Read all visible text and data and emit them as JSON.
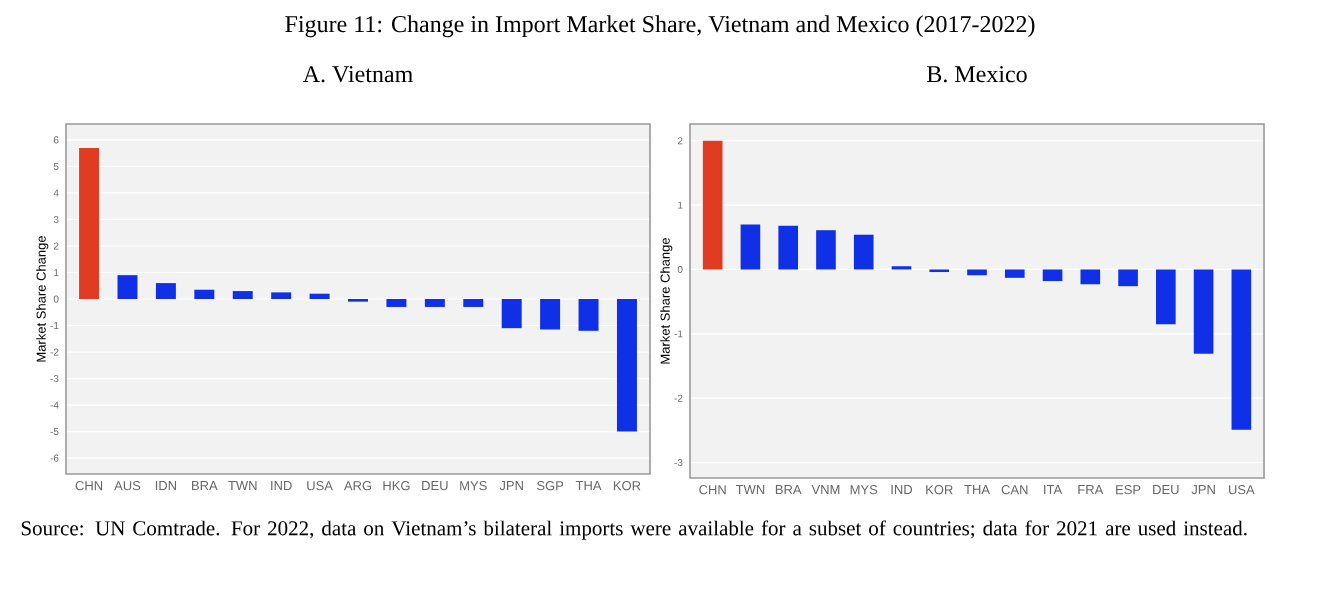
{
  "chart_data": [
    {
      "type": "bar",
      "title": "Figure 11: Change in Import Market Share, Vietnam and Mexico (2017-2022)",
      "subtitle": "A.  Vietnam",
      "ylabel": "Market Share Change",
      "categories": [
        "CHN",
        "AUS",
        "IDN",
        "BRA",
        "TWN",
        "IND",
        "USA",
        "ARG",
        "HKG",
        "DEU",
        "MYS",
        "JPN",
        "SGP",
        "THA",
        "KOR"
      ],
      "values": [
        5.7,
        0.9,
        0.6,
        0.35,
        0.3,
        0.25,
        0.2,
        -0.1,
        -0.3,
        -0.3,
        -0.3,
        -1.1,
        -1.15,
        -1.2,
        -5.0
      ],
      "colors": [
        "#e03c22",
        "#1030e8",
        "#1030e8",
        "#1030e8",
        "#1030e8",
        "#1030e8",
        "#1030e8",
        "#1030e8",
        "#1030e8",
        "#1030e8",
        "#1030e8",
        "#1030e8",
        "#1030e8",
        "#1030e8",
        "#1030e8"
      ],
      "ylim": [
        -6.6,
        6.6
      ],
      "yticks": [
        -6,
        -5,
        -4,
        -3,
        -2,
        -1,
        0,
        1,
        2,
        3,
        4,
        5,
        6
      ],
      "grid": "y",
      "annotations": [
        "Source: UN Comtrade. For 2022, data on Vietnam’s bilateral imports were available for a subset of countries; data for 2021 are used instead."
      ]
    },
    {
      "type": "bar",
      "subtitle": "B. Mexico",
      "ylabel": "Market Share Change",
      "categories": [
        "CHN",
        "TWN",
        "BRA",
        "VNM",
        "MYS",
        "IND",
        "KOR",
        "THA",
        "CAN",
        "ITA",
        "FRA",
        "ESP",
        "DEU",
        "JPN",
        "USA"
      ],
      "values": [
        2.0,
        0.7,
        0.68,
        0.61,
        0.54,
        0.05,
        -0.04,
        -0.09,
        -0.13,
        -0.18,
        -0.23,
        -0.26,
        -0.85,
        -1.31,
        -2.49
      ],
      "colors": [
        "#e03c22",
        "#1030e8",
        "#1030e8",
        "#1030e8",
        "#1030e8",
        "#1030e8",
        "#1030e8",
        "#1030e8",
        "#1030e8",
        "#1030e8",
        "#1030e8",
        "#1030e8",
        "#1030e8",
        "#1030e8",
        "#1030e8"
      ],
      "ylim": [
        -3.24,
        2.26
      ],
      "yticks": [
        -3,
        -2,
        -1,
        0,
        1,
        2
      ],
      "grid": "y"
    }
  ]
}
